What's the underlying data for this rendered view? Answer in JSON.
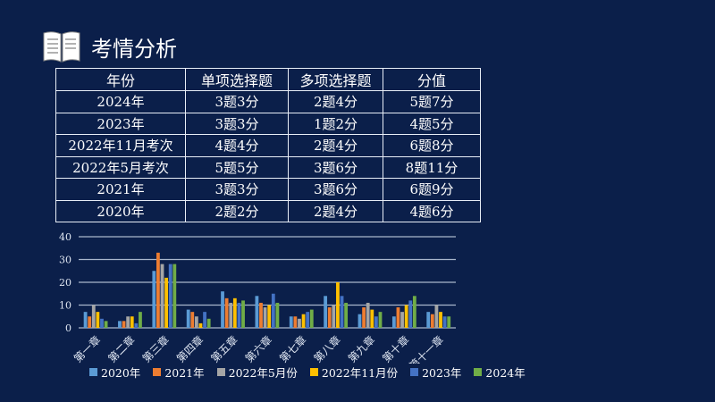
{
  "header": {
    "title": "考情分析",
    "icon": "open-book-icon"
  },
  "table": {
    "columns": [
      "年份",
      "单项选择题",
      "多项选择题",
      "分值"
    ],
    "rows": [
      [
        "2024年",
        "3题3分",
        "2题4分",
        "5题7分"
      ],
      [
        "2023年",
        "3题3分",
        "1题2分",
        "4题5分"
      ],
      [
        "2022年11月考次",
        "4题4分",
        "2题4分",
        "6题8分"
      ],
      [
        "2022年5月考次",
        "5题5分",
        "3题6分",
        "8题11分"
      ],
      [
        "2021年",
        "3题3分",
        "3题6分",
        "6题9分"
      ],
      [
        "2020年",
        "2题2分",
        "2题4分",
        "4题6分"
      ]
    ]
  },
  "chart_data": {
    "type": "bar",
    "categories": [
      "第一章",
      "第二章",
      "第三章",
      "第四章",
      "第五章",
      "第六章",
      "第七章",
      "第八章",
      "第九章",
      "第十章",
      "第十一章"
    ],
    "ylim": [
      0,
      40
    ],
    "yticks": [
      "0",
      "10",
      "20",
      "30",
      "40"
    ],
    "grid": true,
    "legend": "bottom",
    "series": [
      {
        "name": "2020年",
        "color": "#5b9bd5",
        "values": [
          7,
          3,
          25,
          8,
          16,
          14,
          5,
          14,
          6,
          5,
          7
        ]
      },
      {
        "name": "2021年",
        "color": "#ed7d31",
        "values": [
          5,
          3,
          33,
          7,
          13,
          11,
          5,
          9,
          9,
          9,
          6
        ]
      },
      {
        "name": "2022年5月份",
        "color": "#a5a5a5",
        "values": [
          10,
          5,
          28,
          5,
          11,
          9,
          4,
          10,
          11,
          7,
          10
        ]
      },
      {
        "name": "2022年11月份",
        "color": "#ffc000",
        "values": [
          7,
          5,
          22,
          2,
          13,
          10,
          6,
          20,
          8,
          10,
          7
        ]
      },
      {
        "name": "2023年",
        "color": "#4472c4",
        "values": [
          4,
          2,
          28,
          7,
          11,
          15,
          7,
          14,
          5,
          12,
          5
        ]
      },
      {
        "name": "2024年",
        "color": "#70ad47",
        "values": [
          3,
          7,
          28,
          4,
          12,
          11,
          8,
          11,
          7,
          14,
          5
        ]
      }
    ]
  }
}
